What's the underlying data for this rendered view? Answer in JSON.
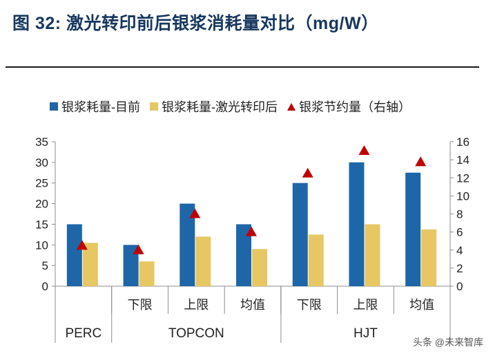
{
  "title": "图 32:  激光转印前后银浆消耗量对比（mg/W）",
  "watermark": "头条 @未来智库",
  "colors": {
    "series1": "#1f66a8",
    "series2": "#e6c763",
    "series3": "#c00000"
  },
  "chart_data": {
    "type": "bar",
    "categories": [
      "",
      "下限",
      "上限",
      "均值",
      "下限",
      "上限",
      "均值"
    ],
    "groups": [
      {
        "label": "PERC",
        "span": 1
      },
      {
        "label": "TOPCON",
        "span": 3
      },
      {
        "label": "HJT",
        "span": 3
      }
    ],
    "legend": [
      "银浆耗量-目前",
      "银浆耗量-激光转印后",
      "银浆节约量（右轴）"
    ],
    "series": [
      {
        "name": "银浆耗量-目前",
        "type": "bar",
        "axis": "left",
        "values": [
          15,
          10,
          20,
          15,
          25,
          30,
          27.5
        ]
      },
      {
        "name": "银浆耗量-激光转印后",
        "type": "bar",
        "axis": "left",
        "values": [
          10.5,
          6,
          12,
          9,
          12.5,
          15,
          13.75
        ]
      },
      {
        "name": "银浆节约量（右轴）",
        "type": "marker",
        "axis": "right",
        "values": [
          4.5,
          4,
          8,
          6,
          12.5,
          15,
          13.75
        ]
      }
    ],
    "y_left": {
      "min": 0,
      "max": 35,
      "ticks": [
        0,
        5,
        10,
        15,
        20,
        25,
        30,
        35
      ]
    },
    "y_right": {
      "min": 0,
      "max": 16,
      "ticks": [
        0,
        2,
        4,
        6,
        8,
        10,
        12,
        14,
        16
      ]
    },
    "legend_position": "top",
    "grid": false
  }
}
